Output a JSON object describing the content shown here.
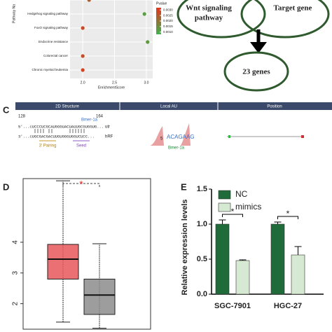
{
  "panel_labels": {
    "c": "C",
    "d": "D",
    "e": "E"
  },
  "venn": {
    "left_lines": [
      "Wnt signaling",
      "pathway"
    ],
    "right": "Target gene",
    "result": "23 genes"
  },
  "structure": {
    "headers": [
      "2D Structure",
      "Local AU",
      "Position"
    ],
    "start": "128",
    "end": "164",
    "mirna_name": "Bmer-1a",
    "utr_seq": "5'...cUCCCUCGCAUGGGUACUAUUGCGUGGUG...",
    "utr_tag": "utr",
    "mir_seq": "3'...cUGCGACGACUUGUGGGUGGUCUCC...",
    "mir_tag": "hRF",
    "pairing": "3' Pairing",
    "seed": "Seed",
    "au_seq": "ACAGAAG",
    "au_name": "Bmer-1a",
    "au_five": "5"
  },
  "chart_data": [
    {
      "type": "dot",
      "categories": [
        null,
        "Hedgehog signaling pathway",
        "FoxO signaling pathway",
        "Endocrine resistance",
        "Colorectal cancer",
        "Chronic myeloid leukemia"
      ],
      "values": [
        2.1,
        2.97,
        2.0,
        3.02,
        2.0,
        2.0
      ],
      "pvalues": [
        0.0024,
        0.0012,
        0.0028,
        0.0013,
        0.0027,
        0.0029
      ],
      "xlabel": "EnrichmentScore",
      "ylabel": "Pathway Na",
      "xlim": [
        1.8,
        3.1
      ],
      "xticks": [
        {
          "value": 2,
          "label": "2.0"
        },
        {
          "value": 2.5,
          "label": "2.5"
        },
        {
          "value": 3,
          "label": "3.0"
        }
      ],
      "legend_title": "Pvalue",
      "clim": [
        0.0008,
        0.0032
      ],
      "colors": [
        "#3cb34a",
        "#e8331c"
      ],
      "color_ticks": [
        {
          "value": 0.003,
          "label": "0.0030"
        },
        {
          "value": 0.0025,
          "label": "0.0025"
        },
        {
          "value": 0.002,
          "label": "0.0020"
        },
        {
          "value": 0.0015,
          "label": "0.0015"
        },
        {
          "value": 0.001,
          "label": "0.0010"
        }
      ]
    },
    {
      "type": "box",
      "categories": [
        null,
        null
      ],
      "min": [
        1.4,
        1.2
      ],
      "q1": [
        2.8,
        1.65
      ],
      "median": [
        3.45,
        2.28
      ],
      "q3": [
        3.93,
        2.8
      ],
      "max": [
        6.0,
        3.95
      ],
      "colors": [
        "#e8575a",
        "#8c8c8c"
      ],
      "ylim": [
        1.17,
        6.07
      ],
      "yticks": [
        2,
        3,
        4
      ],
      "annotation": "*"
    },
    {
      "type": "bar",
      "categories": [
        "SGC-7901",
        "HGC-27"
      ],
      "ylabel": "Relative expression levels",
      "series": [
        {
          "name": "NC",
          "color": "#1f6b3a",
          "values": [
            1.0,
            1.0
          ],
          "errors": [
            0.06,
            0.03
          ]
        },
        {
          "name": "mimics",
          "color": "#d6e9d2",
          "values": [
            0.48,
            0.56
          ],
          "errors": [
            0.01,
            0.12
          ]
        }
      ],
      "ylim": [
        0,
        1.5
      ],
      "yticks": [
        {
          "value": 0,
          "label": "0.0"
        },
        {
          "value": 0.5,
          "label": "0.5"
        },
        {
          "value": 1,
          "label": "1.0"
        },
        {
          "value": 1.5,
          "label": "1.5"
        }
      ],
      "annotations": [
        "*",
        "*"
      ],
      "legend": "top-left"
    }
  ]
}
